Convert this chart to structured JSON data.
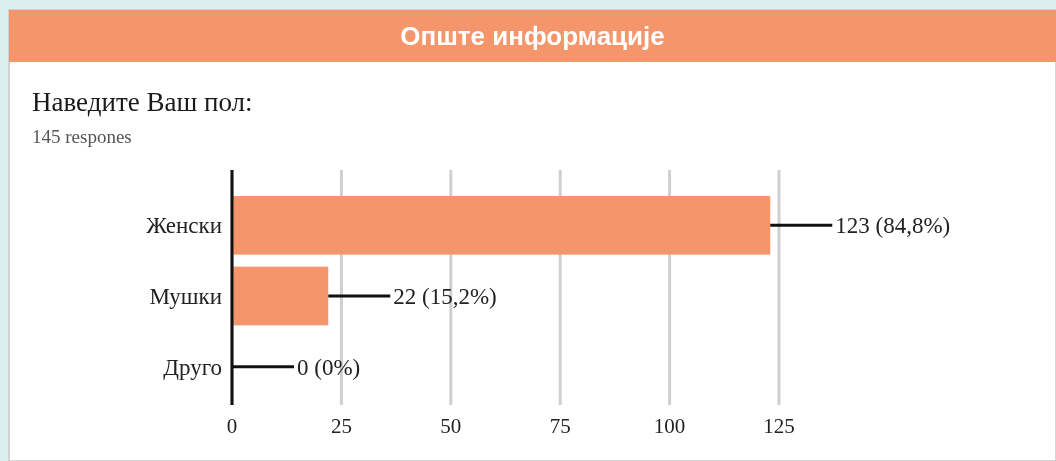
{
  "chart_data": {
    "type": "bar",
    "orientation": "horizontal",
    "title": "Опште информације",
    "subtitle": "Наведите Ваш пол:",
    "annotations": [
      "145 respones"
    ],
    "categories": [
      "Женски",
      "Мушки",
      "Друго"
    ],
    "values": [
      123,
      22,
      0
    ],
    "color": "#f4956b",
    "value_labels": [
      "123 (84,8%)",
      "22 (15,2%)",
      "0 (0%)"
    ],
    "xlim": [
      0,
      125
    ],
    "xticks": [
      0,
      25,
      50,
      75,
      100,
      125
    ],
    "grid": "x"
  }
}
